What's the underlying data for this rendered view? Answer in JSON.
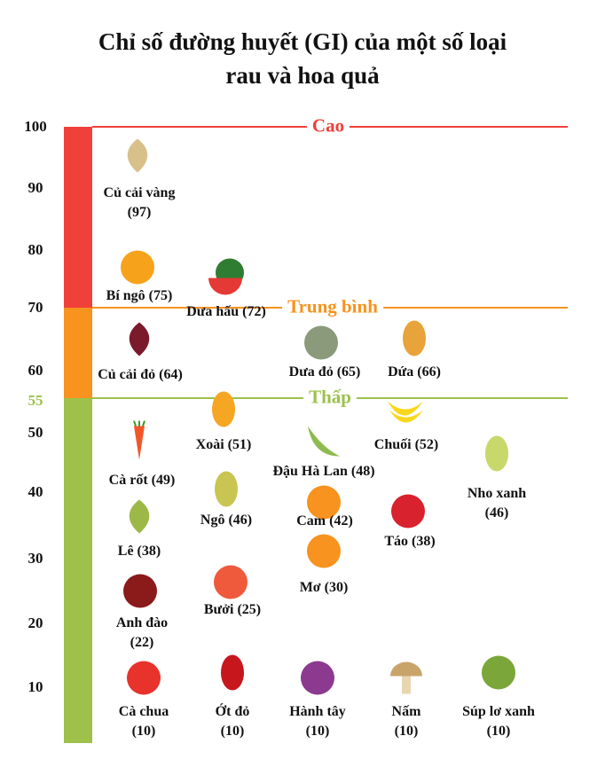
{
  "title_line1": "Chỉ số đường huyết (GI) của một số loại",
  "title_line2": "rau và hoa quả",
  "colors": {
    "high": "#ef4039",
    "medium": "#f7931e",
    "low": "#9dc14b"
  },
  "zones": {
    "high": "Cao",
    "medium": "Trung bình",
    "low": "Thấp"
  },
  "ticks": [
    "100",
    "90",
    "80",
    "70",
    "60",
    "55",
    "50",
    "40",
    "30",
    "20",
    "10"
  ],
  "items": [
    {
      "icon": "turnip-icon",
      "l1": "Củ cải vàng",
      "l2": "(97)"
    },
    {
      "icon": "pumpkin-icon",
      "l1": "Bí ngô (75)"
    },
    {
      "icon": "watermelon-icon",
      "l1": "Dưa hấu (72)"
    },
    {
      "icon": "beetroot-icon",
      "l1": "Củ cải đỏ (64)"
    },
    {
      "icon": "cantaloupe-icon",
      "l1": "Dưa đỏ (65)"
    },
    {
      "icon": "pineapple-icon",
      "l1": "Dứa (66)"
    },
    {
      "icon": "mango-icon",
      "l1": "Xoài (51)"
    },
    {
      "icon": "banana-icon",
      "l1": "Chuối (52)"
    },
    {
      "icon": "pea-icon",
      "l1": "Đậu Hà Lan (48)"
    },
    {
      "icon": "carrot-icon",
      "l1": "Cà rốt (49)"
    },
    {
      "icon": "grape-icon",
      "l1": "Nho xanh",
      "l2": "(46)"
    },
    {
      "icon": "corn-icon",
      "l1": "Ngô (46)"
    },
    {
      "icon": "orange-icon",
      "l1": "Cam (42)"
    },
    {
      "icon": "pear-icon",
      "l1": "Lê (38)"
    },
    {
      "icon": "apple-icon",
      "l1": "Táo (38)"
    },
    {
      "icon": "apricot-icon",
      "l1": "Mơ (30)"
    },
    {
      "icon": "grapefruit-icon",
      "l1": "Bưởi (25)"
    },
    {
      "icon": "cherry-icon",
      "l1": "Anh đào",
      "l2": "(22)"
    },
    {
      "icon": "tomato-icon",
      "l1": "Cà chua",
      "l2": "(10)"
    },
    {
      "icon": "red-pepper-icon",
      "l1": "Ớt đỏ",
      "l2": "(10)"
    },
    {
      "icon": "onion-icon",
      "l1": "Hành tây",
      "l2": "(10)"
    },
    {
      "icon": "mushroom-icon",
      "l1": "Nấm",
      "l2": "(10)"
    },
    {
      "icon": "broccoli-icon",
      "l1": "Súp lơ xanh",
      "l2": "(10)"
    }
  ]
}
